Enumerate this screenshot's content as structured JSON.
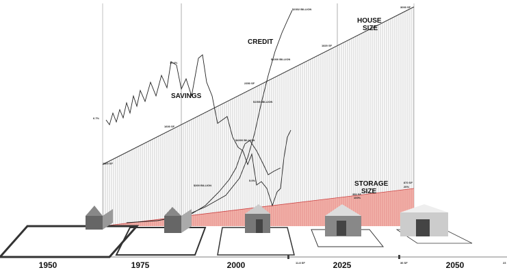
{
  "headings": {
    "credit": "CREDIT",
    "house": [
      "HOUSE",
      "SIZE"
    ],
    "savings": "SAVINGS",
    "storage": [
      "STORAGE",
      "SIZE"
    ]
  },
  "annotations": [
    "$2302 BILLION",
    "3000 SF",
    "1820 SF",
    "$1000 BILLION",
    "2350 SF",
    "$1500 BILLION",
    "10.4%",
    "6.7%",
    "1600 SF",
    "$4000 BILLION",
    "1100 SF",
    "$300 BILLION",
    "5.0%",
    "350 SF",
    "100%",
    "870 SF",
    "20%",
    "11.8 SF",
    "36 SF",
    "23"
  ],
  "years": [
    "1950",
    "1975",
    "2000",
    "2025",
    "2050"
  ]
}
